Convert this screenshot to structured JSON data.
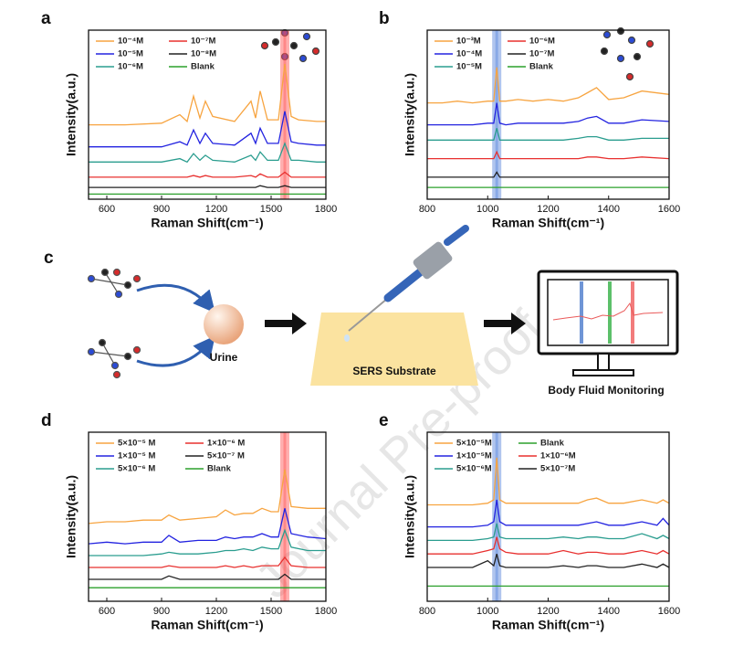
{
  "chart_data": [
    {
      "type": "line",
      "label": "a",
      "x_label": "Raman Shift(cm⁻¹)",
      "y_label": "Intensity(a.u.)",
      "x": [
        500,
        700,
        900,
        1000,
        1040,
        1075,
        1110,
        1140,
        1180,
        1300,
        1390,
        1415,
        1440,
        1480,
        1540,
        1575,
        1610,
        1650,
        1750,
        1800
      ],
      "xlim": [
        500,
        1800
      ],
      "xticks": [
        600,
        900,
        1200,
        1500,
        1800
      ],
      "ylim": [
        0,
        100
      ],
      "highlight_x": 1575,
      "highlight_color": "#ff4d4d",
      "series": [
        {
          "name": "10⁻⁴M",
          "color": "#f7a440",
          "values": [
            44,
            44,
            45,
            50,
            46,
            61,
            48,
            58,
            49,
            46,
            58,
            48,
            64,
            47,
            47,
            80,
            49,
            47,
            46,
            46
          ]
        },
        {
          "name": "10⁻⁵M",
          "color": "#2323e0",
          "values": [
            31,
            31,
            31,
            34,
            32,
            41,
            33,
            39,
            33,
            32,
            39,
            33,
            42,
            33,
            33,
            52,
            34,
            33,
            32,
            32
          ]
        },
        {
          "name": "10⁻⁶M",
          "color": "#2a9d8f",
          "values": [
            22,
            22,
            22,
            24,
            22,
            27,
            23,
            26,
            23,
            22,
            26,
            23,
            28,
            23,
            23,
            33,
            23,
            23,
            22,
            22
          ]
        },
        {
          "name": "10⁻⁷M",
          "color": "#e8302f",
          "values": [
            13,
            13,
            13,
            13,
            13,
            14,
            13,
            14,
            13,
            13,
            14,
            13,
            15,
            13,
            13,
            16,
            13,
            13,
            13,
            13
          ]
        },
        {
          "name": "10⁻⁸M",
          "color": "#222222",
          "values": [
            7,
            7,
            7,
            7,
            7,
            7,
            7,
            7,
            7,
            7,
            7,
            7,
            8,
            7,
            7,
            8,
            7,
            7,
            7,
            7
          ]
        },
        {
          "name": "Blank",
          "color": "#2ca02c",
          "values": [
            3,
            3,
            3,
            3,
            3,
            3,
            3,
            3,
            3,
            3,
            3,
            3,
            3,
            3,
            3,
            3,
            3,
            3,
            3,
            3
          ]
        }
      ]
    },
    {
      "type": "line",
      "label": "b",
      "x_label": "Raman Shift(cm⁻¹)",
      "y_label": "Intensity(a.u.)",
      "x": [
        800,
        850,
        900,
        950,
        1000,
        1020,
        1030,
        1040,
        1060,
        1100,
        1150,
        1200,
        1250,
        1300,
        1330,
        1360,
        1400,
        1450,
        1510,
        1600
      ],
      "xlim": [
        800,
        1600
      ],
      "xticks": [
        800,
        1000,
        1200,
        1400,
        1600
      ],
      "ylim": [
        0,
        100
      ],
      "highlight_x": 1030,
      "highlight_color": "#4f7fd9",
      "series": [
        {
          "name": "10⁻³M",
          "color": "#f7a440",
          "values": [
            57,
            57,
            58,
            57,
            58,
            58,
            78,
            58,
            58,
            59,
            58,
            59,
            58,
            60,
            63,
            66,
            59,
            60,
            64,
            62
          ]
        },
        {
          "name": "10⁻⁴M",
          "color": "#2323e0",
          "values": [
            44,
            44,
            44,
            44,
            45,
            45,
            57,
            45,
            44,
            45,
            45,
            45,
            45,
            46,
            48,
            49,
            45,
            45,
            47,
            46
          ]
        },
        {
          "name": "10⁻⁵M",
          "color": "#2a9d8f",
          "values": [
            35,
            35,
            35,
            35,
            35,
            35,
            42,
            35,
            35,
            35,
            35,
            35,
            35,
            36,
            37,
            37,
            35,
            35,
            36,
            36
          ]
        },
        {
          "name": "10⁻⁶M",
          "color": "#e8302f",
          "values": [
            24,
            24,
            24,
            24,
            24,
            24,
            28,
            24,
            24,
            24,
            24,
            24,
            24,
            24,
            25,
            25,
            24,
            24,
            25,
            24
          ]
        },
        {
          "name": "10⁻⁷M",
          "color": "#222222",
          "values": [
            13,
            13,
            13,
            13,
            13,
            13,
            16,
            13,
            13,
            13,
            13,
            13,
            13,
            13,
            13,
            13,
            13,
            13,
            13,
            13
          ]
        },
        {
          "name": "Blank",
          "color": "#2ca02c",
          "values": [
            7,
            7,
            7,
            7,
            7,
            7,
            7,
            7,
            7,
            7,
            7,
            7,
            7,
            7,
            7,
            7,
            7,
            7,
            7,
            7
          ]
        }
      ]
    },
    {
      "type": "line",
      "label": "d",
      "x_label": "Raman Shift(cm⁻¹)",
      "y_label": "Intensity(a.u.)",
      "x": [
        500,
        600,
        700,
        800,
        900,
        940,
        1000,
        1100,
        1200,
        1250,
        1300,
        1350,
        1400,
        1450,
        1500,
        1540,
        1575,
        1610,
        1700,
        1800
      ],
      "xlim": [
        500,
        1800
      ],
      "xticks": [
        600,
        900,
        1200,
        1500,
        1800
      ],
      "ylim": [
        0,
        100
      ],
      "highlight_x": 1575,
      "highlight_color": "#ff4d4d",
      "series": [
        {
          "name": "5×10⁻⁵ M",
          "color": "#f7a440",
          "values": [
            46,
            47,
            47,
            48,
            48,
            51,
            48,
            49,
            50,
            54,
            51,
            52,
            52,
            55,
            53,
            53,
            78,
            56,
            55,
            55
          ]
        },
        {
          "name": "1×10⁻⁵ M",
          "color": "#2323e0",
          "values": [
            34,
            35,
            34,
            35,
            35,
            39,
            35,
            36,
            36,
            38,
            37,
            38,
            38,
            40,
            38,
            38,
            55,
            40,
            38,
            37
          ]
        },
        {
          "name": "5×10⁻⁶ M",
          "color": "#2a9d8f",
          "values": [
            27,
            27,
            27,
            27,
            28,
            29,
            28,
            28,
            29,
            30,
            30,
            31,
            30,
            32,
            31,
            31,
            42,
            32,
            30,
            30
          ]
        },
        {
          "name": "1×10⁻⁶ M",
          "color": "#e8302f",
          "values": [
            20,
            20,
            20,
            20,
            20,
            21,
            20,
            20,
            20,
            21,
            20,
            21,
            20,
            21,
            21,
            21,
            26,
            21,
            20,
            20
          ]
        },
        {
          "name": "5×10⁻⁷ M",
          "color": "#222222",
          "values": [
            13,
            13,
            13,
            13,
            13,
            15,
            13,
            13,
            13,
            13,
            13,
            13,
            13,
            13,
            13,
            13,
            16,
            13,
            13,
            13
          ]
        },
        {
          "name": "Blank",
          "color": "#2ca02c",
          "values": [
            8,
            8,
            8,
            8,
            8,
            8,
            8,
            8,
            8,
            8,
            8,
            8,
            8,
            8,
            8,
            8,
            8,
            8,
            8,
            8
          ]
        }
      ]
    },
    {
      "type": "line",
      "label": "e",
      "x_label": "Raman Shift(cm⁻¹)",
      "y_label": "Intensity(a.u.)",
      "x": [
        800,
        850,
        900,
        950,
        1000,
        1020,
        1030,
        1040,
        1060,
        1100,
        1200,
        1250,
        1300,
        1330,
        1360,
        1400,
        1450,
        1510,
        1560,
        1580,
        1600
      ],
      "xlim": [
        800,
        1600
      ],
      "xticks": [
        800,
        1000,
        1200,
        1400,
        1600
      ],
      "ylim": [
        0,
        100
      ],
      "highlight_x": 1030,
      "highlight_color": "#4f7fd9",
      "series": [
        {
          "name": "5×10⁻⁵M",
          "color": "#f7a440",
          "values": [
            57,
            57,
            57,
            57,
            58,
            60,
            85,
            60,
            58,
            58,
            58,
            58,
            58,
            60,
            61,
            58,
            58,
            60,
            58,
            60,
            58
          ]
        },
        {
          "name": "1×10⁻⁵M",
          "color": "#2323e0",
          "values": [
            44,
            44,
            44,
            44,
            45,
            47,
            60,
            47,
            45,
            45,
            45,
            45,
            45,
            46,
            47,
            45,
            45,
            47,
            45,
            49,
            45
          ]
        },
        {
          "name": "5×10⁻⁶M",
          "color": "#2a9d8f",
          "values": [
            36,
            36,
            36,
            36,
            37,
            38,
            46,
            38,
            37,
            37,
            37,
            38,
            37,
            38,
            38,
            37,
            37,
            40,
            37,
            39,
            37
          ]
        },
        {
          "name": "Blank",
          "color": "#2ca02c",
          "values": [
            9,
            9,
            9,
            9,
            9,
            9,
            9,
            9,
            9,
            9,
            9,
            9,
            9,
            9,
            9,
            9,
            9,
            9,
            9,
            9,
            9
          ]
        },
        {
          "name": "1×10⁻⁶M",
          "color": "#e8302f",
          "values": [
            28,
            28,
            28,
            28,
            30,
            31,
            38,
            31,
            29,
            28,
            28,
            30,
            28,
            29,
            29,
            28,
            28,
            30,
            28,
            30,
            28
          ]
        },
        {
          "name": "5×10⁻⁷M",
          "color": "#222222",
          "values": [
            20,
            20,
            20,
            20,
            24,
            21,
            28,
            21,
            20,
            20,
            20,
            21,
            20,
            21,
            21,
            20,
            20,
            22,
            20,
            22,
            20
          ]
        }
      ]
    }
  ],
  "diagram": {
    "label": "c",
    "nodes": [
      {
        "label": "Urine"
      },
      {
        "label": "SERS Substrate"
      },
      {
        "label": "Body Fluid Monitoring"
      }
    ]
  },
  "watermark": "Journal Pre-proof"
}
